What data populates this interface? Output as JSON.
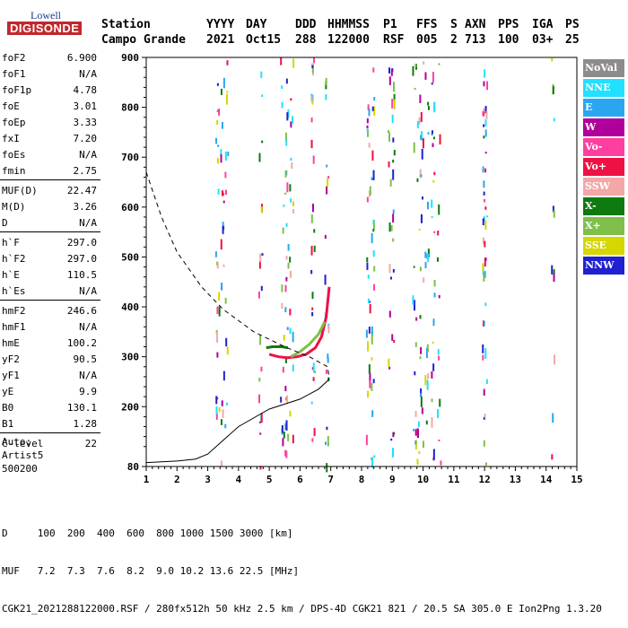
{
  "logo": {
    "line1": "Lowell",
    "line2": "DIGISONDE"
  },
  "header": {
    "row1": [
      "Station",
      "YYYY",
      "DAY",
      "DDD",
      "HHMMSS",
      "P1",
      "FFS",
      "S",
      "AXN",
      "PPS",
      "IGA",
      "PS"
    ],
    "row2": [
      "Campo Grande",
      "2021",
      "Oct15",
      "288",
      "122000",
      "RSF",
      "005",
      "2",
      "713",
      "100",
      "03+",
      "25"
    ]
  },
  "params": [
    {
      "k": "foF2",
      "v": "6.900"
    },
    {
      "k": "foF1",
      "v": "N/A"
    },
    {
      "k": "foF1p",
      "v": "4.78"
    },
    {
      "k": "foE",
      "v": "3.01"
    },
    {
      "k": "foEp",
      "v": "3.33"
    },
    {
      "k": "fxI",
      "v": "7.20"
    },
    {
      "k": "foEs",
      "v": "N/A"
    },
    {
      "k": "fmin",
      "v": "2.75"
    },
    {
      "k": "MUF(D)",
      "v": "22.47"
    },
    {
      "k": "M(D)",
      "v": "3.26"
    },
    {
      "k": "D",
      "v": "N/A"
    },
    {
      "k": "h`F",
      "v": "297.0"
    },
    {
      "k": "h`F2",
      "v": "297.0"
    },
    {
      "k": "h`E",
      "v": "110.5"
    },
    {
      "k": "h`Es",
      "v": "N/A"
    },
    {
      "k": "hmF2",
      "v": "246.6"
    },
    {
      "k": "hmF1",
      "v": "N/A"
    },
    {
      "k": "hmE",
      "v": "100.2"
    },
    {
      "k": "yF2",
      "v": "90.5"
    },
    {
      "k": "yF1",
      "v": "N/A"
    },
    {
      "k": "yE",
      "v": "9.9"
    },
    {
      "k": "B0",
      "v": "130.1"
    },
    {
      "k": "B1",
      "v": "1.28"
    },
    {
      "k": "C-level",
      "v": "22"
    }
  ],
  "artist": {
    "line1": "Auto:",
    "line2": "Artist5",
    "line3": "500200"
  },
  "legend": [
    {
      "label": "NoVal",
      "color": "#8c8c8c"
    },
    {
      "label": "NNE",
      "color": "#22e0ff"
    },
    {
      "label": "E",
      "color": "#2aa6f0"
    },
    {
      "label": "W",
      "color": "#b0009c"
    },
    {
      "label": "Vo-",
      "color": "#ff3fa0"
    },
    {
      "label": "Vo+",
      "color": "#ee1144"
    },
    {
      "label": "SSW",
      "color": "#f4a7a7"
    },
    {
      "label": "X-",
      "color": "#0f7a0f"
    },
    {
      "label": "X+",
      "color": "#7fbf4a"
    },
    {
      "label": "SSE",
      "color": "#d6d600"
    },
    {
      "label": "NNW",
      "color": "#2020d0"
    }
  ],
  "bottom": {
    "d_line": "D     100  200  400  600  800 1000 1500 3000 [km]",
    "muf_line": "MUF   7.2  7.3  7.6  8.2  9.0 10.2 13.6 22.5 [MHz]",
    "file_line": "CGK21_2021288122000.RSF / 280fx512h 50 kHz 2.5 km / DPS-4D CGK21 821 / 20.5 SA 305.0 E Ion2Png 1.3.20"
  },
  "chart_data": {
    "type": "scatter",
    "x_ticks": [
      "1",
      "2",
      "3",
      "4",
      "5",
      "6",
      "7",
      "8",
      "9",
      "10",
      "11",
      "12",
      "13",
      "14",
      "15"
    ],
    "y_ticks": [
      "80",
      "200",
      "300",
      "400",
      "500",
      "600",
      "700",
      "800",
      "900"
    ],
    "xlim": [
      1,
      15
    ],
    "ylim": [
      80,
      900
    ],
    "xlabel": "",
    "ylabel": "",
    "grid": false,
    "series": [
      {
        "color": "#ee1144",
        "points": [
          [
            5.0,
            305
          ],
          [
            5.3,
            300
          ],
          [
            5.6,
            298
          ],
          [
            5.9,
            300
          ],
          [
            6.2,
            305
          ],
          [
            6.5,
            318
          ],
          [
            6.7,
            340
          ],
          [
            6.85,
            380
          ],
          [
            6.95,
            440
          ]
        ]
      },
      {
        "color": "#0f7a0f",
        "points": [
          [
            4.9,
            318
          ],
          [
            5.1,
            320
          ],
          [
            5.4,
            320
          ],
          [
            5.6,
            318
          ]
        ]
      },
      {
        "color": "#7fbf4a",
        "points": [
          [
            5.7,
            300
          ],
          [
            6.0,
            310
          ],
          [
            6.3,
            325
          ],
          [
            6.6,
            345
          ],
          [
            6.8,
            370
          ]
        ]
      },
      {
        "color": "#000000",
        "points": [
          [
            1.0,
            88
          ],
          [
            2.0,
            91
          ],
          [
            2.6,
            95
          ],
          [
            3.0,
            105
          ],
          [
            4.0,
            160
          ],
          [
            5.0,
            195
          ],
          [
            6.0,
            215
          ],
          [
            6.6,
            235
          ],
          [
            6.95,
            255
          ]
        ]
      }
    ],
    "dashed_profile": [
      [
        1.0,
        670
      ],
      [
        1.5,
        580
      ],
      [
        2.0,
        510
      ],
      [
        2.8,
        440
      ],
      [
        3.5,
        395
      ],
      [
        4.5,
        350
      ],
      [
        5.5,
        320
      ],
      [
        6.3,
        300
      ],
      [
        6.9,
        280
      ],
      [
        6.95,
        255
      ]
    ]
  }
}
